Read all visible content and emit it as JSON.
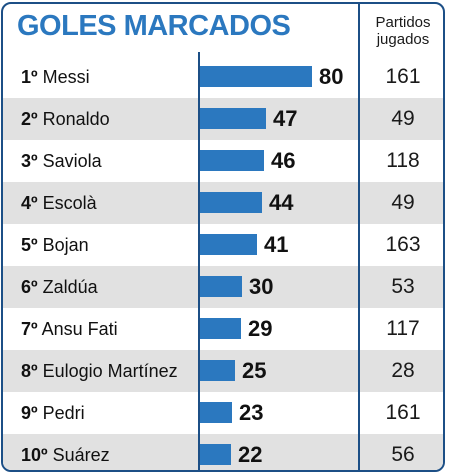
{
  "title": "GOLES MARCADOS",
  "games_header": [
    "Partidos",
    "jugados"
  ],
  "chart_data": {
    "type": "bar",
    "orientation": "horizontal",
    "title": "GOLES MARCADOS",
    "categories": [
      "Messi",
      "Ronaldo",
      "Saviola",
      "Escolà",
      "Bojan",
      "Zaldúa",
      "Ansu Fati",
      "Eulogio Martínez",
      "Pedri",
      "Suárez"
    ],
    "ranks": [
      "1º",
      "2º",
      "3º",
      "4º",
      "5º",
      "6º",
      "7º",
      "8º",
      "9º",
      "10º"
    ],
    "values": [
      80,
      47,
      46,
      44,
      41,
      30,
      29,
      25,
      23,
      22
    ],
    "games_played": [
      161,
      49,
      118,
      49,
      163,
      53,
      117,
      28,
      161,
      56
    ],
    "colors": {
      "bar": "#2b78bf",
      "title": "#2b78bf",
      "border": "#1c4f86",
      "row_shade": "#e1e1e1"
    }
  }
}
